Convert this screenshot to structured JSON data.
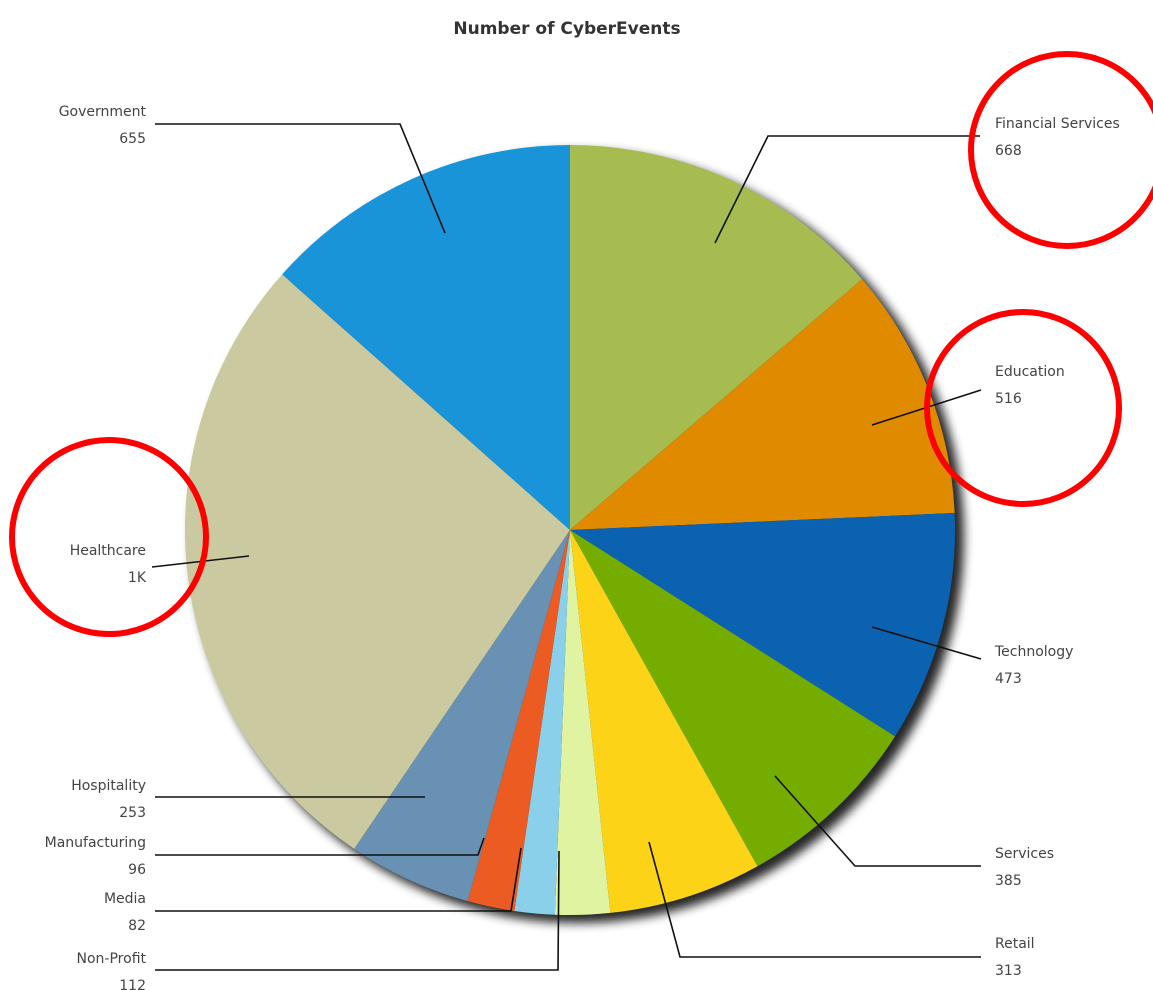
{
  "chart_data": {
    "type": "pie",
    "title": "Number of CyberEvents",
    "slices": [
      {
        "label": "Financial Services",
        "display": "668",
        "value": 668,
        "color": "#a6bc50"
      },
      {
        "label": "Education",
        "display": "516",
        "value": 516,
        "color": "#e08a00"
      },
      {
        "label": "Technology",
        "display": "473",
        "value": 473,
        "color": "#0a62b0"
      },
      {
        "label": "Services",
        "display": "385",
        "value": 385,
        "color": "#74ac00"
      },
      {
        "label": "Retail",
        "display": "313",
        "value": 313,
        "color": "#fdd317"
      },
      {
        "label": "Non-Profit",
        "display": "112",
        "value": 112,
        "color": "#dff3a0"
      },
      {
        "label": "Media",
        "display": "82",
        "value": 82,
        "color": "#8ad0ea"
      },
      {
        "label": "Manufacturing",
        "display": "96",
        "value": 96,
        "color": "#ec5b22"
      },
      {
        "label": "Hospitality",
        "display": "253",
        "value": 253,
        "color": "#6991b3"
      },
      {
        "label": "Healthcare",
        "display": "1K",
        "value": 1320,
        "color": "#cbc99f"
      },
      {
        "label": "Government",
        "display": "655",
        "value": 655,
        "color": "#1a94d8"
      }
    ],
    "highlighted": [
      "Financial Services",
      "Education",
      "Healthcare"
    ],
    "highlight_color": "#ff0000"
  }
}
